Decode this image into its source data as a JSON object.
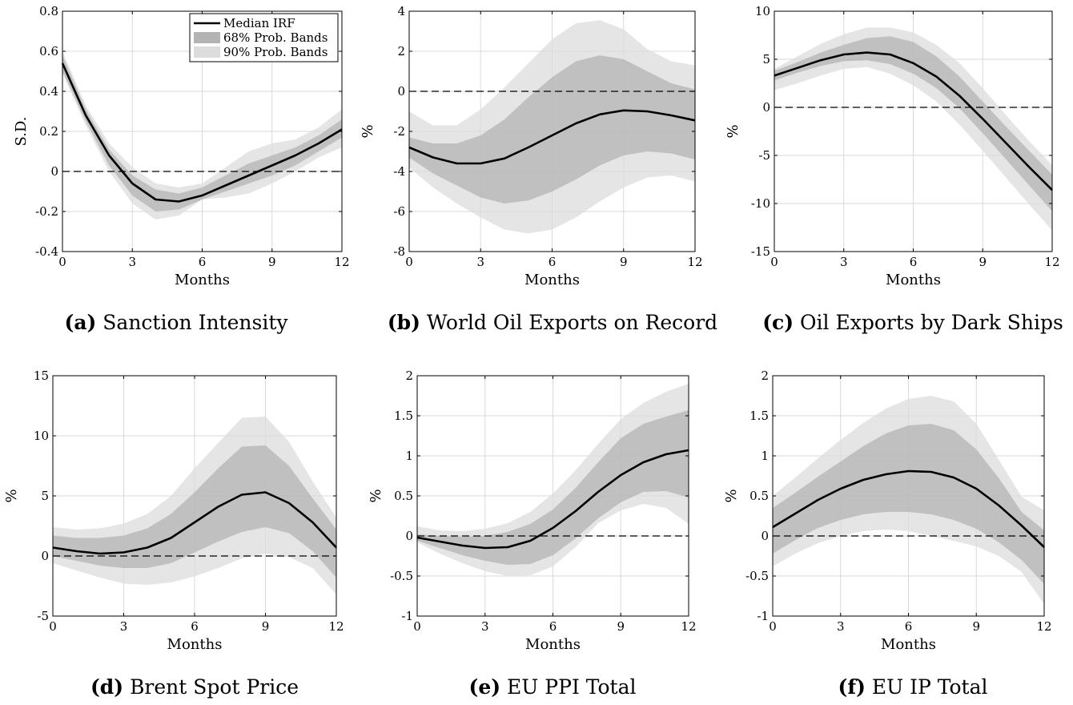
{
  "figure": {
    "legend": {
      "median_label": "Median IRF",
      "band68_label": "68% Prob. Bands",
      "band90_label": "90% Prob. Bands"
    },
    "colors": {
      "line": "#000000",
      "band68": "#b3b3b3",
      "band90": "#dcdcdc",
      "grid": "#dadada"
    }
  },
  "chart_data": [
    {
      "type": "line",
      "caption_letter": "(a)",
      "caption_title": "Sanction Intensity",
      "xlabel": "Months",
      "ylabel": "S.D.",
      "xlim": [
        0,
        12
      ],
      "ylim": [
        -0.4,
        0.8
      ],
      "xticks": [
        0,
        3,
        6,
        9,
        12
      ],
      "xtick_labels": [
        "0",
        "3",
        "6",
        "9",
        "12"
      ],
      "yticks": [
        -0.4,
        -0.2,
        0,
        0.2,
        0.4,
        0.6,
        0.8
      ],
      "ytick_labels": [
        "-0.4",
        "-0.2",
        "0",
        "0.2",
        "0.4",
        "0.6",
        "0.8"
      ],
      "grid": true,
      "legend_position": "top-right",
      "x": [
        0,
        1,
        2,
        3,
        4,
        5,
        6,
        7,
        8,
        9,
        10,
        11,
        12
      ],
      "median": [
        0.54,
        0.28,
        0.08,
        -0.06,
        -0.14,
        -0.15,
        -0.12,
        -0.07,
        -0.02,
        0.03,
        0.08,
        0.14,
        0.21
      ],
      "band68_lower": [
        0.5,
        0.25,
        0.03,
        -0.12,
        -0.2,
        -0.19,
        -0.14,
        -0.1,
        -0.06,
        -0.02,
        0.03,
        0.1,
        0.17
      ],
      "band68_upper": [
        0.58,
        0.31,
        0.11,
        -0.02,
        -0.09,
        -0.11,
        -0.08,
        -0.02,
        0.04,
        0.08,
        0.12,
        0.18,
        0.26
      ],
      "band90_lower": [
        0.49,
        0.23,
        0.0,
        -0.16,
        -0.24,
        -0.22,
        -0.14,
        -0.13,
        -0.11,
        -0.06,
        0.0,
        0.07,
        0.12
      ],
      "band90_upper": [
        0.6,
        0.33,
        0.14,
        0.02,
        -0.06,
        -0.08,
        -0.06,
        0.02,
        0.1,
        0.14,
        0.16,
        0.22,
        0.31
      ]
    },
    {
      "type": "line",
      "caption_letter": "(b)",
      "caption_title": "World Oil Exports on Record",
      "xlabel": "Months",
      "ylabel": "%",
      "xlim": [
        0,
        12
      ],
      "ylim": [
        -8,
        4
      ],
      "xticks": [
        0,
        3,
        6,
        9,
        12
      ],
      "xtick_labels": [
        "0",
        "3",
        "6",
        "9",
        "12"
      ],
      "yticks": [
        -8,
        -6,
        -4,
        -2,
        0,
        2,
        4
      ],
      "ytick_labels": [
        "-8",
        "-6",
        "-4",
        "-2",
        "0",
        "2",
        "4"
      ],
      "grid": true,
      "x": [
        0,
        1,
        2,
        3,
        4,
        5,
        6,
        7,
        8,
        9,
        10,
        11,
        12
      ],
      "median": [
        -2.8,
        -3.3,
        -3.6,
        -3.6,
        -3.35,
        -2.8,
        -2.2,
        -1.6,
        -1.15,
        -0.95,
        -1.0,
        -1.2,
        -1.45
      ],
      "band68_lower": [
        -3.3,
        -4.1,
        -4.7,
        -5.3,
        -5.6,
        -5.45,
        -5.0,
        -4.4,
        -3.7,
        -3.2,
        -3.0,
        -3.1,
        -3.4
      ],
      "band68_upper": [
        -2.3,
        -2.6,
        -2.6,
        -2.2,
        -1.4,
        -0.3,
        0.7,
        1.5,
        1.8,
        1.6,
        1.0,
        0.4,
        0.1
      ],
      "band90_lower": [
        -3.8,
        -4.8,
        -5.6,
        -6.3,
        -6.9,
        -7.1,
        -6.9,
        -6.3,
        -5.5,
        -4.8,
        -4.3,
        -4.2,
        -4.5
      ],
      "band90_upper": [
        -1.0,
        -1.7,
        -1.7,
        -0.9,
        0.2,
        1.4,
        2.6,
        3.4,
        3.55,
        3.1,
        2.1,
        1.5,
        1.3
      ]
    },
    {
      "type": "line",
      "caption_letter": "(c)",
      "caption_title": "Oil Exports by Dark Ships",
      "xlabel": "Months",
      "ylabel": "%",
      "xlim": [
        0,
        12
      ],
      "ylim": [
        -15,
        10
      ],
      "xticks": [
        0,
        3,
        6,
        9,
        12
      ],
      "xtick_labels": [
        "0",
        "3",
        "6",
        "9",
        "12"
      ],
      "yticks": [
        -15,
        -10,
        -5,
        0,
        5,
        10
      ],
      "ytick_labels": [
        "-15",
        "-10",
        "-5",
        "0",
        "5",
        "10"
      ],
      "grid": true,
      "x": [
        0,
        1,
        2,
        3,
        4,
        5,
        6,
        7,
        8,
        9,
        10,
        11,
        12
      ],
      "median": [
        3.3,
        4.1,
        4.9,
        5.5,
        5.7,
        5.5,
        4.6,
        3.2,
        1.2,
        -1.2,
        -3.7,
        -6.2,
        -8.6
      ],
      "band68_lower": [
        2.8,
        3.6,
        4.3,
        4.8,
        4.9,
        4.5,
        3.5,
        2.0,
        -0.1,
        -2.7,
        -5.4,
        -8.1,
        -10.8
      ],
      "band68_upper": [
        3.8,
        4.7,
        5.7,
        6.5,
        7.2,
        7.4,
        6.8,
        5.3,
        3.2,
        0.6,
        -2.0,
        -4.5,
        -7.0
      ],
      "band90_lower": [
        1.8,
        2.5,
        3.3,
        4.0,
        4.2,
        3.5,
        2.3,
        0.6,
        -1.8,
        -4.5,
        -7.3,
        -10.1,
        -12.8
      ],
      "band90_upper": [
        4.0,
        5.3,
        6.6,
        7.6,
        8.3,
        8.3,
        7.8,
        6.5,
        4.6,
        2.0,
        -0.8,
        -3.5,
        -6.0
      ]
    },
    {
      "type": "line",
      "caption_letter": "(d)",
      "caption_title": "Brent Spot Price",
      "xlabel": "Months",
      "ylabel": "%",
      "xlim": [
        0,
        12
      ],
      "ylim": [
        -5,
        15
      ],
      "xticks": [
        0,
        3,
        6,
        9,
        12
      ],
      "xtick_labels": [
        "0",
        "3",
        "6",
        "9",
        "12"
      ],
      "yticks": [
        -5,
        0,
        5,
        10,
        15
      ],
      "ytick_labels": [
        "-5",
        "0",
        "5",
        "10",
        "15"
      ],
      "grid": true,
      "x": [
        0,
        1,
        2,
        3,
        4,
        5,
        6,
        7,
        8,
        9,
        10,
        11,
        12
      ],
      "median": [
        0.7,
        0.4,
        0.2,
        0.3,
        0.7,
        1.5,
        2.8,
        4.1,
        5.1,
        5.3,
        4.4,
        2.8,
        0.7
      ],
      "band68_lower": [
        0.0,
        -0.4,
        -0.8,
        -1.0,
        -1.0,
        -0.6,
        0.3,
        1.2,
        2.0,
        2.4,
        1.9,
        0.4,
        -1.8
      ],
      "band68_upper": [
        1.7,
        1.5,
        1.5,
        1.7,
        2.3,
        3.5,
        5.3,
        7.3,
        9.1,
        9.2,
        7.5,
        4.8,
        2.2
      ],
      "band90_lower": [
        -0.6,
        -1.2,
        -1.8,
        -2.3,
        -2.4,
        -2.2,
        -1.7,
        -1.0,
        -0.2,
        0.2,
        -0.1,
        -1.0,
        -3.2
      ],
      "band90_upper": [
        2.4,
        2.2,
        2.3,
        2.7,
        3.5,
        5.0,
        7.3,
        9.4,
        11.5,
        11.6,
        9.5,
        6.2,
        3.2
      ]
    },
    {
      "type": "line",
      "caption_letter": "(e)",
      "caption_title": "EU PPI Total",
      "xlabel": "Months",
      "ylabel": "%",
      "xlim": [
        0,
        12
      ],
      "ylim": [
        -1,
        2
      ],
      "xticks": [
        0,
        3,
        6,
        9,
        12
      ],
      "xtick_labels": [
        "0",
        "3",
        "6",
        "9",
        "12"
      ],
      "yticks": [
        -1,
        -0.5,
        0,
        0.5,
        1,
        1.5,
        2
      ],
      "ytick_labels": [
        "-1",
        "-0.5",
        "0",
        "0.5",
        "1",
        "1.5",
        "2"
      ],
      "grid": true,
      "x": [
        0,
        1,
        2,
        3,
        4,
        5,
        6,
        7,
        8,
        9,
        10,
        11,
        12
      ],
      "median": [
        -0.02,
        -0.07,
        -0.12,
        -0.15,
        -0.14,
        -0.06,
        0.1,
        0.31,
        0.55,
        0.76,
        0.92,
        1.02,
        1.07
      ],
      "band68_lower": [
        -0.06,
        -0.15,
        -0.24,
        -0.31,
        -0.36,
        -0.35,
        -0.24,
        -0.03,
        0.22,
        0.42,
        0.55,
        0.56,
        0.48
      ],
      "band68_upper": [
        0.02,
        0.0,
        -0.01,
        0.0,
        0.05,
        0.15,
        0.33,
        0.6,
        0.92,
        1.22,
        1.4,
        1.49,
        1.57
      ],
      "band90_lower": [
        -0.08,
        -0.22,
        -0.34,
        -0.44,
        -0.5,
        -0.49,
        -0.38,
        -0.14,
        0.16,
        0.32,
        0.4,
        0.35,
        0.15
      ],
      "band90_upper": [
        0.12,
        0.07,
        0.06,
        0.09,
        0.16,
        0.3,
        0.53,
        0.82,
        1.15,
        1.46,
        1.66,
        1.8,
        1.9
      ]
    },
    {
      "type": "line",
      "caption_letter": "(f)",
      "caption_title": "EU IP Total",
      "xlabel": "Months",
      "ylabel": "%",
      "xlim": [
        0,
        12
      ],
      "ylim": [
        -1,
        2
      ],
      "xticks": [
        0,
        3,
        6,
        9,
        12
      ],
      "xtick_labels": [
        "0",
        "3",
        "6",
        "9",
        "12"
      ],
      "yticks": [
        -1,
        -0.5,
        0,
        0.5,
        1,
        1.5,
        2
      ],
      "ytick_labels": [
        "-1",
        "-0.5",
        "0",
        "0.5",
        "1",
        "1.5",
        "2"
      ],
      "grid": true,
      "x": [
        0,
        1,
        2,
        3,
        4,
        5,
        6,
        7,
        8,
        9,
        10,
        11,
        12
      ],
      "median": [
        0.11,
        0.28,
        0.45,
        0.59,
        0.7,
        0.77,
        0.81,
        0.8,
        0.73,
        0.59,
        0.38,
        0.13,
        -0.14
      ],
      "band68_lower": [
        -0.22,
        -0.05,
        0.1,
        0.2,
        0.27,
        0.3,
        0.3,
        0.27,
        0.2,
        0.09,
        -0.08,
        -0.3,
        -0.6
      ],
      "band68_upper": [
        0.35,
        0.54,
        0.74,
        0.93,
        1.12,
        1.28,
        1.38,
        1.4,
        1.32,
        1.08,
        0.72,
        0.3,
        0.07
      ],
      "band90_lower": [
        -0.38,
        -0.22,
        -0.09,
        0.0,
        0.06,
        0.08,
        0.06,
        0.0,
        -0.06,
        -0.13,
        -0.25,
        -0.45,
        -0.85
      ],
      "band90_upper": [
        0.5,
        0.73,
        0.97,
        1.2,
        1.41,
        1.59,
        1.71,
        1.75,
        1.68,
        1.4,
        0.95,
        0.49,
        0.32
      ]
    }
  ]
}
